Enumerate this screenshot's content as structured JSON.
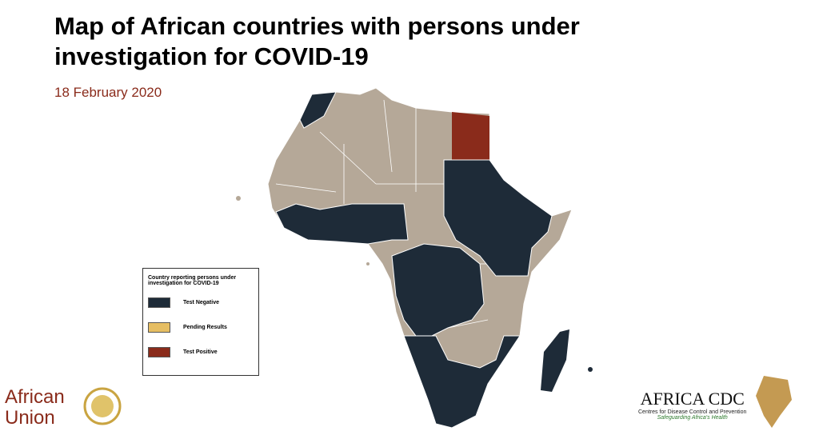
{
  "header": {
    "title": "Map of African countries with persons under investigation for COVID-19",
    "date": "18 February 2020"
  },
  "legend": {
    "title": "Country reporting  persons under investigation for COVID-19",
    "items": [
      {
        "label": "Test Negative",
        "color": "#1e2b38"
      },
      {
        "label": "Pending Results",
        "color": "#e6be63"
      },
      {
        "label": "Test Positive",
        "color": "#8a2b1b"
      }
    ]
  },
  "logos": {
    "au_line1": "African",
    "au_line2": "Union",
    "cdc_name": "AFRICA CDC",
    "cdc_sub": "Centres for Disease Control and Prevention",
    "cdc_tag": "Safeguarding Africa's Health"
  }
}
